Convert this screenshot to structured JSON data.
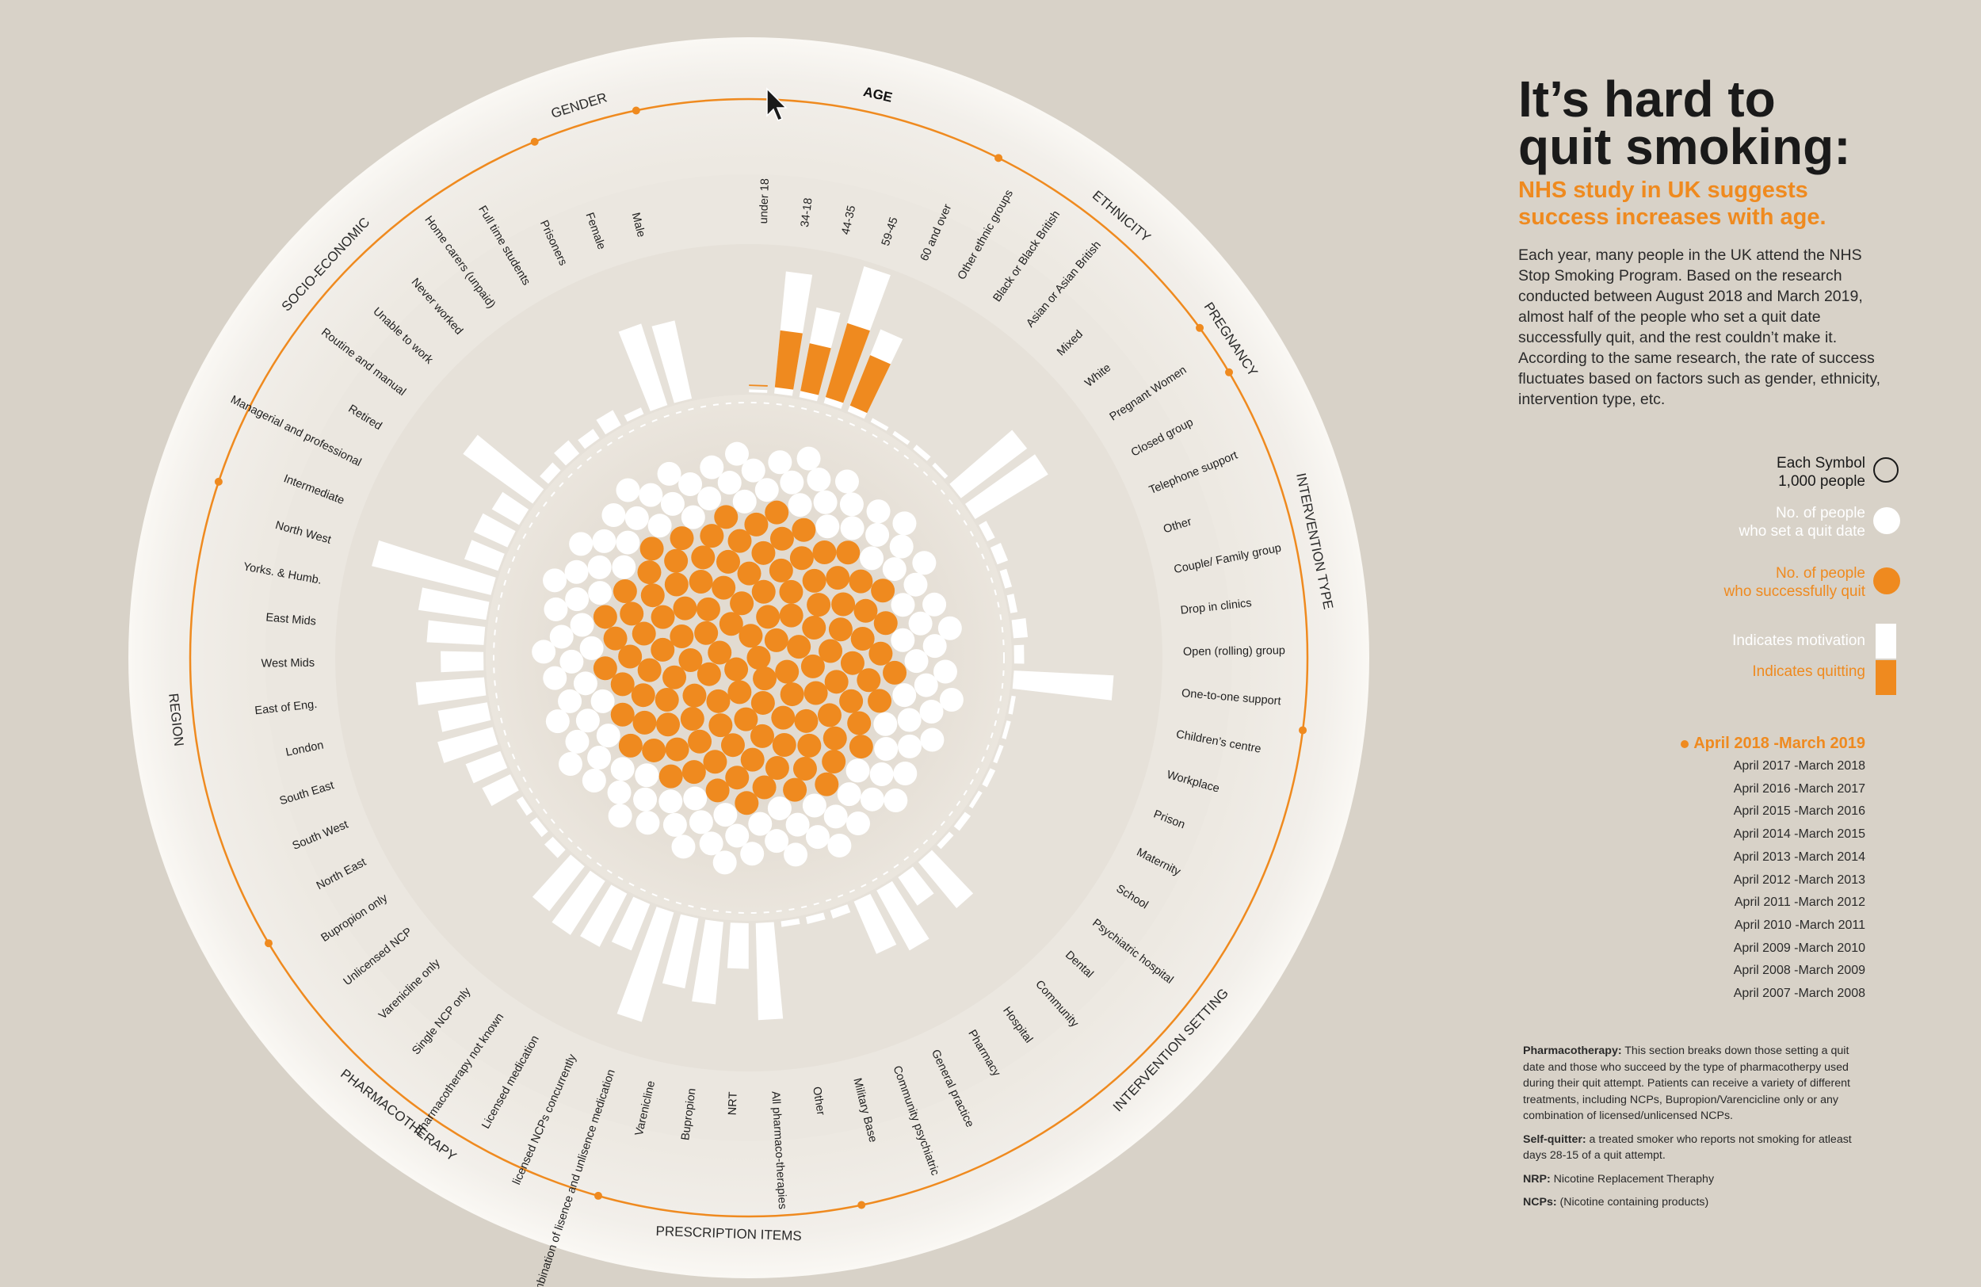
{
  "header": {
    "title_line1": "It’s hard to",
    "title_line2": "quit smoking:",
    "subtitle": "NHS study in UK suggests success increases with age.",
    "intro": "Each year, many people in the UK attend the NHS Stop Smoking Program. Based on the research conducted between August 2018 and March 2019, almost half of the people who set a quit date successfully quit, and the rest couldn’t make it. According to the same research, the rate of success fluctuates based on factors such as gender, ethnicity, intervention type, etc."
  },
  "legend": {
    "symbol_line1": "Each Symbol",
    "symbol_line2": "1,000 people",
    "set_line1": "No. of people",
    "set_line2": "who set a quit date",
    "quit_line1": "No. of people",
    "quit_line2": "who successfully quit",
    "motivation": "Indicates motivation",
    "quitting": "Indicates quitting"
  },
  "colors": {
    "background": "#d8d2c8",
    "accent": "#ef8a1f",
    "white": "#ffffff",
    "text": "#1a1a1a"
  },
  "years": {
    "current": "April 2018 -March 2019",
    "others": [
      "April 2017 -March 2018",
      "April 2016 -March 2017",
      "April 2015 -March 2016",
      "April 2014 -March 2015",
      "April 2013 -March 2014",
      "April 2012 -March 2013",
      "April 2011 -March 2012",
      "April 2010 -March 2011",
      "April 2009 -March 2010",
      "April 2008 -March 2009",
      "April 2007 -March 2008"
    ]
  },
  "notes": {
    "pharma_label": "Pharmacotherapy:",
    "pharma_text": " This section breaks down those setting a quit date and those who succeed by the type of pharmacotherpy used during their quit attempt. Patients can receive a variety of different treatments, including NCPs, Bupropion/Varencicline only or any combination of licensed/unlicensed NCPs.",
    "self_label": "Self-quitter:",
    "self_text": " a treated smoker who reports not smoking for atleast days 28-15 of a quit attempt.",
    "nrp_label": "NRP:",
    "nrp_text": " Nicotine Replacement Theraphy",
    "ncp_label": "NCPs:",
    "ncp_text": " (Nicotine containing products)"
  },
  "chart_data": {
    "type": "radial-bar",
    "title": "It’s hard to quit smoking",
    "center_symbols": {
      "unit": "1,000 people",
      "set_quit_date": 225,
      "successfully_quit": 116
    },
    "categories": [
      {
        "name": "AGE",
        "items": [
          {
            "label": "under 18",
            "set": 0.02,
            "quit": 0.01
          },
          {
            "label": "34-18",
            "set": 0.86,
            "quit": 0.4
          },
          {
            "label": "44-35",
            "set": 0.64,
            "quit": 0.34
          },
          {
            "label": "59-45",
            "set": 1.0,
            "quit": 0.54
          },
          {
            "label": "60 and over",
            "set": 0.62,
            "quit": 0.38
          }
        ]
      },
      {
        "name": "ETHNICITY",
        "items": [
          {
            "label": "Other ethnic groups",
            "set": 0.03,
            "quit": 0
          },
          {
            "label": "Black or Black British",
            "set": 0.03,
            "quit": 0
          },
          {
            "label": "Asian or Asian British",
            "set": 0.04,
            "quit": 0
          },
          {
            "label": "Mixed",
            "set": 0.03,
            "quit": 0
          },
          {
            "label": "White",
            "set": 0.58,
            "quit": 0
          }
        ]
      },
      {
        "name": "PREGNANCY",
        "items": [
          {
            "label": "Pregnant Women",
            "set": 0.6,
            "quit": 0
          }
        ]
      },
      {
        "name": "INTERVENTION TYPE",
        "items": [
          {
            "label": "Closed group",
            "set": 0.06,
            "quit": 0
          },
          {
            "label": "Telephone support",
            "set": 0.08,
            "quit": 0
          },
          {
            "label": "Other",
            "set": 0.05,
            "quit": 0
          },
          {
            "label": "Couple/ Family group",
            "set": 0.05,
            "quit": 0
          },
          {
            "label": "Drop in clinics",
            "set": 0.1,
            "quit": 0
          },
          {
            "label": "Open (rolling) group",
            "set": 0.07,
            "quit": 0
          },
          {
            "label": "One-to-one support",
            "set": 0.7,
            "quit": 0
          }
        ]
      },
      {
        "name": "INTERVENTION SETTING",
        "items": [
          {
            "label": "Children’s centre",
            "set": 0.03,
            "quit": 0
          },
          {
            "label": "Workplace",
            "set": 0.03,
            "quit": 0
          },
          {
            "label": "Prison",
            "set": 0.03,
            "quit": 0
          },
          {
            "label": "Maternity",
            "set": 0.04,
            "quit": 0
          },
          {
            "label": "School",
            "set": 0.03,
            "quit": 0
          },
          {
            "label": "Psychiatric hospital",
            "set": 0.05,
            "quit": 0
          },
          {
            "label": "Dental",
            "set": 0.04,
            "quit": 0
          },
          {
            "label": "Community",
            "set": 0.42,
            "quit": 0
          },
          {
            "label": "Hospital",
            "set": 0.24,
            "quit": 0
          },
          {
            "label": "Pharmacy",
            "set": 0.48,
            "quit": 0
          },
          {
            "label": "General practice",
            "set": 0.4,
            "quit": 0
          },
          {
            "label": "Community psychiatric",
            "set": 0.06,
            "quit": 0
          },
          {
            "label": "Military Base",
            "set": 0.05,
            "quit": 0
          }
        ]
      },
      {
        "name": "PRESCRIPTION ITEMS",
        "items": [
          {
            "label": "Other",
            "set": 0.04,
            "quit": 0
          },
          {
            "label": "All pharmaco-therapies",
            "set": 0.68,
            "quit": 0
          },
          {
            "label": "NRT",
            "set": 0.32,
            "quit": 0
          },
          {
            "label": "Bupropion",
            "set": 0.58,
            "quit": 0
          },
          {
            "label": "Varenicline",
            "set": 0.5,
            "quit": 0
          }
        ]
      },
      {
        "name": "PHARMACOTHERAPY",
        "items": [
          {
            "label": "Combination of lisence and unlisence medication",
            "set": 0.8,
            "quit": 0
          },
          {
            "label": "licensed NCPs concurrently",
            "set": 0.35,
            "quit": 0
          },
          {
            "label": "Licensed medication",
            "set": 0.42,
            "quit": 0
          },
          {
            "label": "Pharmacotherapy not known",
            "set": 0.45,
            "quit": 0
          },
          {
            "label": "Single NCP only",
            "set": 0.4,
            "quit": 0
          },
          {
            "label": "Varenicline only",
            "set": 0.08,
            "quit": 0
          },
          {
            "label": "Unlicensed NCP",
            "set": 0.06,
            "quit": 0
          },
          {
            "label": "Bupropion only",
            "set": 0.05,
            "quit": 0
          }
        ]
      },
      {
        "name": "REGION",
        "items": [
          {
            "label": "North East",
            "set": 0.22,
            "quit": 0
          },
          {
            "label": "South West",
            "set": 0.26,
            "quit": 0
          },
          {
            "label": "South East",
            "set": 0.4,
            "quit": 0
          },
          {
            "label": "London",
            "set": 0.35,
            "quit": 0
          },
          {
            "label": "East of Eng.",
            "set": 0.48,
            "quit": 0
          },
          {
            "label": "West Mids",
            "set": 0.3,
            "quit": 0
          },
          {
            "label": "East  Mids",
            "set": 0.4,
            "quit": 0
          },
          {
            "label": "Yorks. & Humb.",
            "set": 0.48,
            "quit": 0
          },
          {
            "label": "North West",
            "set": 0.86,
            "quit": 0
          }
        ]
      },
      {
        "name": "SOCIO-ECONOMIC",
        "items": [
          {
            "label": "Intermediate",
            "set": 0.25,
            "quit": 0
          },
          {
            "label": "Managerial and professional",
            "set": 0.26,
            "quit": 0
          },
          {
            "label": "Retired",
            "set": 0.22,
            "quit": 0
          },
          {
            "label": "Routine and manual",
            "set": 0.6,
            "quit": 0
          },
          {
            "label": "Unable to work",
            "set": 0.08,
            "quit": 0
          },
          {
            "label": "Never worked",
            "set": 0.12,
            "quit": 0
          },
          {
            "label": "Home carers (unpaid)",
            "set": 0.08,
            "quit": 0
          },
          {
            "label": "Full time students",
            "set": 0.12,
            "quit": 0
          },
          {
            "label": "Prisoners",
            "set": 0.05,
            "quit": 0
          }
        ]
      },
      {
        "name": "GENDER",
        "items": [
          {
            "label": "Female",
            "set": 0.6,
            "quit": 0
          },
          {
            "label": "Male",
            "set": 0.56,
            "quit": 0
          }
        ]
      }
    ]
  }
}
